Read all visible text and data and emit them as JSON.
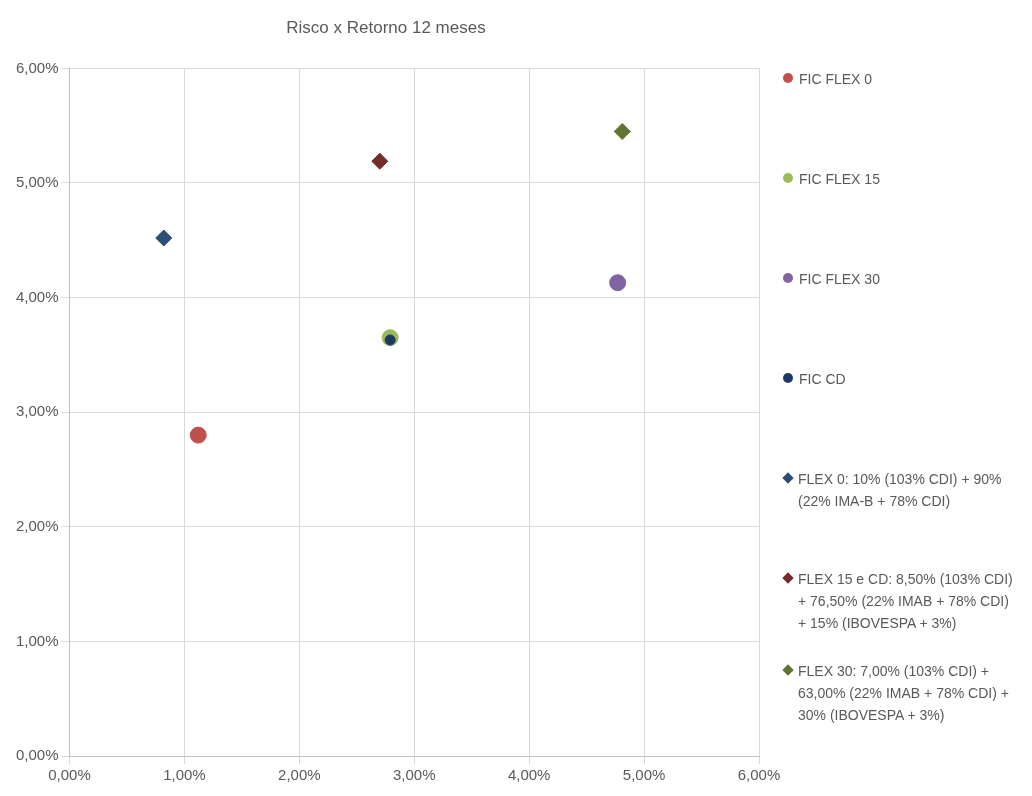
{
  "chart_data": {
    "type": "scatter",
    "title": "Risco x Retorno 12 meses",
    "xlim": [
      0,
      6
    ],
    "ylim": [
      0,
      6
    ],
    "xticks": [
      {
        "value": 0,
        "label": "0,00%"
      },
      {
        "value": 1,
        "label": "1,00%"
      },
      {
        "value": 2,
        "label": "2,00%"
      },
      {
        "value": 3,
        "label": "3,00%"
      },
      {
        "value": 4,
        "label": "4,00%"
      },
      {
        "value": 5,
        "label": "5,00%"
      },
      {
        "value": 6,
        "label": "6,00%"
      }
    ],
    "yticks": [
      {
        "value": 0,
        "label": "0,00%"
      },
      {
        "value": 1,
        "label": "1,00%"
      },
      {
        "value": 2,
        "label": "2,00%"
      },
      {
        "value": 3,
        "label": "3,00%"
      },
      {
        "value": 4,
        "label": "4,00%"
      },
      {
        "value": 5,
        "label": "5,00%"
      },
      {
        "value": 6,
        "label": "6,00%"
      }
    ],
    "grid": true,
    "legend": "right",
    "series": [
      {
        "name": "FIC FLEX 0",
        "color": "#c0504d",
        "marker": "circle",
        "x": [
          1.12
        ],
        "values": [
          2.8
        ]
      },
      {
        "name": "FIC FLEX 15",
        "color": "#9bbb59",
        "marker": "circle",
        "x": [
          2.79
        ],
        "values": [
          3.65
        ]
      },
      {
        "name": "FIC FLEX 30",
        "color": "#8064a2",
        "marker": "circle",
        "x": [
          4.77
        ],
        "values": [
          4.13
        ]
      },
      {
        "name": "FIC CD",
        "color": "#1f3864",
        "marker": "circle",
        "x": [
          2.79
        ],
        "values": [
          3.63
        ]
      },
      {
        "name": "FLEX 0: 10% (103% CDI) + 90% (22% IMA-B + 78% CDI)",
        "color": "#2c4d75",
        "marker": "diamond",
        "x": [
          0.82
        ],
        "values": [
          4.52
        ]
      },
      {
        "name": "FLEX 15 e CD: 8,50% (103% CDI) + 76,50% (22% IMAB + 78% CDI) + 15% (IBOVESPA + 3%)",
        "color": "#772c2a",
        "marker": "diamond",
        "x": [
          2.7
        ],
        "values": [
          5.19
        ]
      },
      {
        "name": "FLEX 30: 7,00% (103% CDI) + 63,00% (22% IMAB + 78% CDI) + 30% (IBOVESPA + 3%)",
        "color": "#5f7530",
        "marker": "diamond",
        "x": [
          4.81
        ],
        "values": [
          5.45
        ]
      }
    ]
  }
}
